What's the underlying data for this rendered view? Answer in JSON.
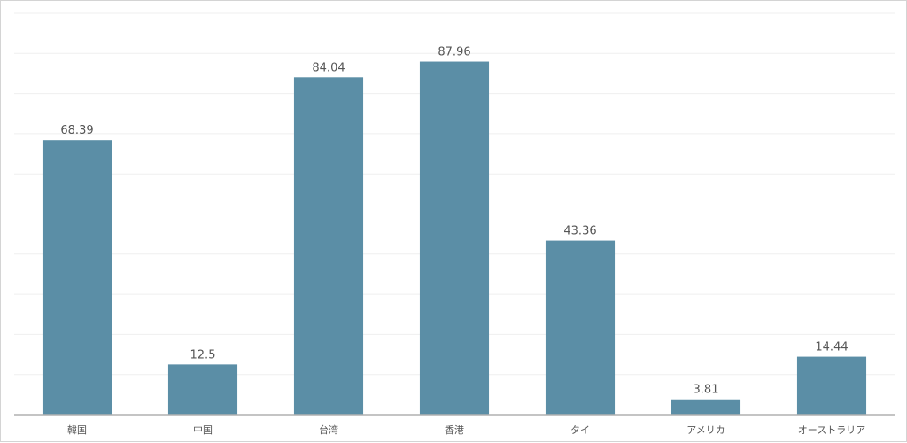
{
  "chart_data": {
    "type": "bar",
    "categories": [
      "韓国",
      "中国",
      "台湾",
      "香港",
      "タイ",
      "アメリカ",
      "オーストラリア"
    ],
    "values": [
      68.39,
      12.5,
      84.04,
      87.96,
      43.36,
      3.81,
      14.44
    ],
    "value_labels": [
      "68.39",
      "12.5",
      "84.04",
      "87.96",
      "43.36",
      "3.81",
      "14.44"
    ],
    "title": "",
    "xlabel": "",
    "ylabel": "",
    "ylim": [
      0,
      100
    ],
    "y_gridline_step": 10,
    "y_tick_labels_shown": false,
    "grid": true,
    "legend": "none",
    "colors": {
      "bar": "#5b8ea6",
      "grid": "#efefef",
      "baseline": "#b0b0b0",
      "text": "#555555"
    }
  }
}
